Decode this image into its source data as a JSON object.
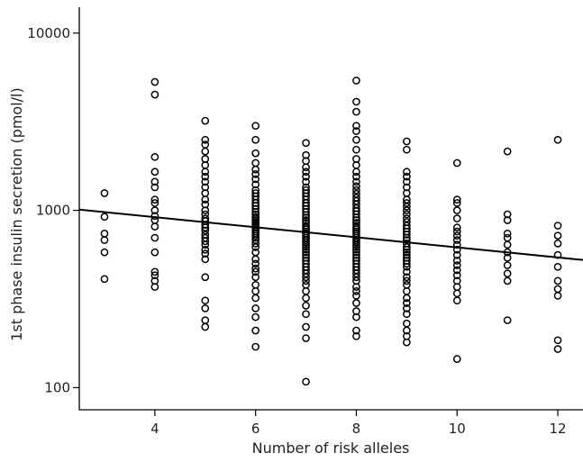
{
  "chart_data": {
    "type": "scatter",
    "title": "",
    "xlabel": "Number of risk alleles",
    "ylabel": "1st phase insulin secretion (pmol/l)",
    "xlim": [
      2.5,
      12.5
    ],
    "ylim": [
      75,
      14000
    ],
    "yscale": "log",
    "xticks": [
      4,
      6,
      8,
      10,
      12
    ],
    "yticks": [
      100,
      1000,
      10000
    ],
    "xtick_labels": [
      "4",
      "6",
      "8",
      "10",
      "12"
    ],
    "ytick_labels": [
      "100",
      "1000",
      "10000"
    ],
    "grid": false,
    "legend": "none",
    "marker": "open-circle",
    "points": [
      {
        "x": 3,
        "y": [
          410,
          580,
          680,
          740,
          920,
          1250
        ]
      },
      {
        "x": 4,
        "y": [
          370,
          400,
          430,
          450,
          580,
          700,
          810,
          880,
          930,
          1000,
          1100,
          1150,
          1350,
          1450,
          1650,
          2000,
          4500,
          5300
        ]
      },
      {
        "x": 5,
        "y": [
          220,
          240,
          280,
          310,
          420,
          530,
          570,
          600,
          640,
          670,
          700,
          730,
          770,
          800,
          830,
          870,
          900,
          950,
          1000,
          1080,
          1150,
          1250,
          1350,
          1450,
          1550,
          1650,
          1800,
          1950,
          2150,
          2350,
          2500,
          3200
        ]
      },
      {
        "x": 6,
        "y": [
          170,
          210,
          250,
          280,
          320,
          350,
          380,
          420,
          450,
          470,
          500,
          530,
          580,
          620,
          650,
          680,
          700,
          720,
          740,
          760,
          780,
          800,
          820,
          840,
          860,
          880,
          900,
          920,
          950,
          980,
          1020,
          1060,
          1100,
          1150,
          1200,
          1250,
          1300,
          1400,
          1500,
          1600,
          1700,
          1850,
          2100,
          2500,
          3000
        ]
      },
      {
        "x": 7,
        "y": [
          108,
          190,
          220,
          260,
          290,
          320,
          350,
          380,
          400,
          420,
          440,
          460,
          480,
          500,
          520,
          540,
          560,
          580,
          600,
          620,
          640,
          660,
          680,
          700,
          720,
          740,
          760,
          780,
          800,
          820,
          850,
          880,
          910,
          940,
          980,
          1020,
          1060,
          1100,
          1150,
          1200,
          1250,
          1300,
          1350,
          1450,
          1550,
          1650,
          1750,
          1900,
          2050,
          2400
        ]
      },
      {
        "x": 8,
        "y": [
          195,
          210,
          250,
          270,
          300,
          330,
          350,
          370,
          400,
          420,
          440,
          460,
          480,
          500,
          520,
          540,
          560,
          580,
          600,
          620,
          640,
          660,
          680,
          700,
          720,
          740,
          760,
          780,
          800,
          820,
          850,
          880,
          910,
          950,
          990,
          1030,
          1080,
          1130,
          1180,
          1240,
          1300,
          1370,
          1450,
          1550,
          1650,
          1800,
          1950,
          2200,
          2500,
          2800,
          3000,
          3600,
          4100,
          5400
        ]
      },
      {
        "x": 9,
        "y": [
          180,
          195,
          210,
          230,
          260,
          280,
          300,
          320,
          350,
          380,
          400,
          420,
          450,
          480,
          500,
          520,
          540,
          560,
          580,
          600,
          620,
          650,
          680,
          700,
          730,
          760,
          790,
          820,
          860,
          900,
          950,
          1000,
          1050,
          1100,
          1150,
          1250,
          1350,
          1450,
          1550,
          1650,
          2200,
          2450
        ]
      },
      {
        "x": 10,
        "y": [
          145,
          310,
          340,
          370,
          400,
          430,
          460,
          490,
          520,
          560,
          600,
          640,
          680,
          720,
          760,
          800,
          900,
          1000,
          1100,
          1150,
          1850
        ]
      },
      {
        "x": 11,
        "y": [
          240,
          400,
          440,
          490,
          540,
          580,
          640,
          700,
          740,
          880,
          950,
          2150
        ]
      },
      {
        "x": 12,
        "y": [
          165,
          185,
          330,
          360,
          400,
          480,
          560,
          650,
          720,
          820,
          2500
        ]
      }
    ],
    "fit_line": {
      "x": [
        2.5,
        12.5
      ],
      "y": [
        1010,
        525
      ]
    }
  }
}
